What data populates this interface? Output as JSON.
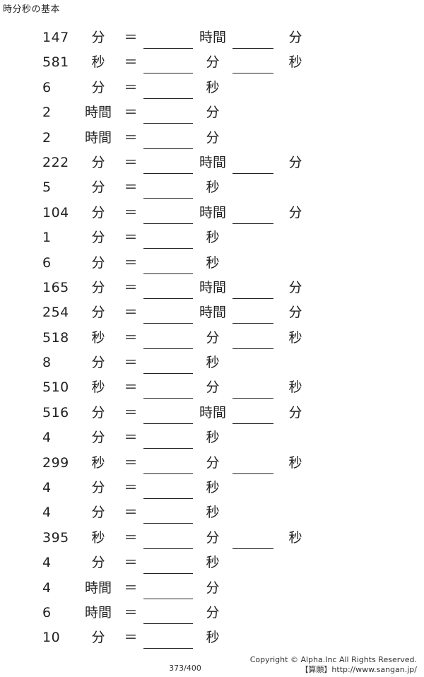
{
  "header": {
    "title": "時分秒の基本"
  },
  "equals_sign": "＝",
  "problems": [
    {
      "value": "147",
      "from_unit": "分",
      "unit_a": "時間",
      "unit_b": "分"
    },
    {
      "value": "581",
      "from_unit": "秒",
      "unit_a": "分",
      "unit_b": "秒"
    },
    {
      "value": "6",
      "from_unit": "分",
      "unit_a": "秒",
      "unit_b": ""
    },
    {
      "value": "2",
      "from_unit": "時間",
      "unit_a": "分",
      "unit_b": ""
    },
    {
      "value": "2",
      "from_unit": "時間",
      "unit_a": "分",
      "unit_b": ""
    },
    {
      "value": "222",
      "from_unit": "分",
      "unit_a": "時間",
      "unit_b": "分"
    },
    {
      "value": "5",
      "from_unit": "分",
      "unit_a": "秒",
      "unit_b": ""
    },
    {
      "value": "104",
      "from_unit": "分",
      "unit_a": "時間",
      "unit_b": "分"
    },
    {
      "value": "1",
      "from_unit": "分",
      "unit_a": "秒",
      "unit_b": ""
    },
    {
      "value": "6",
      "from_unit": "分",
      "unit_a": "秒",
      "unit_b": ""
    },
    {
      "value": "165",
      "from_unit": "分",
      "unit_a": "時間",
      "unit_b": "分"
    },
    {
      "value": "254",
      "from_unit": "分",
      "unit_a": "時間",
      "unit_b": "分"
    },
    {
      "value": "518",
      "from_unit": "秒",
      "unit_a": "分",
      "unit_b": "秒"
    },
    {
      "value": "8",
      "from_unit": "分",
      "unit_a": "秒",
      "unit_b": ""
    },
    {
      "value": "510",
      "from_unit": "秒",
      "unit_a": "分",
      "unit_b": "秒"
    },
    {
      "value": "516",
      "from_unit": "分",
      "unit_a": "時間",
      "unit_b": "分"
    },
    {
      "value": "4",
      "from_unit": "分",
      "unit_a": "秒",
      "unit_b": ""
    },
    {
      "value": "299",
      "from_unit": "秒",
      "unit_a": "分",
      "unit_b": "秒"
    },
    {
      "value": "4",
      "from_unit": "分",
      "unit_a": "秒",
      "unit_b": ""
    },
    {
      "value": "4",
      "from_unit": "分",
      "unit_a": "秒",
      "unit_b": ""
    },
    {
      "value": "395",
      "from_unit": "秒",
      "unit_a": "分",
      "unit_b": "秒"
    },
    {
      "value": "4",
      "from_unit": "分",
      "unit_a": "秒",
      "unit_b": ""
    },
    {
      "value": "4",
      "from_unit": "時間",
      "unit_a": "分",
      "unit_b": ""
    },
    {
      "value": "6",
      "from_unit": "時間",
      "unit_a": "分",
      "unit_b": ""
    },
    {
      "value": "10",
      "from_unit": "分",
      "unit_a": "秒",
      "unit_b": ""
    }
  ],
  "footer": {
    "page_number": "373/400",
    "copyright": "Copyright © Alpha.Inc All Rights Reserved.",
    "site": "【算願】http://www.sangan.jp/"
  }
}
